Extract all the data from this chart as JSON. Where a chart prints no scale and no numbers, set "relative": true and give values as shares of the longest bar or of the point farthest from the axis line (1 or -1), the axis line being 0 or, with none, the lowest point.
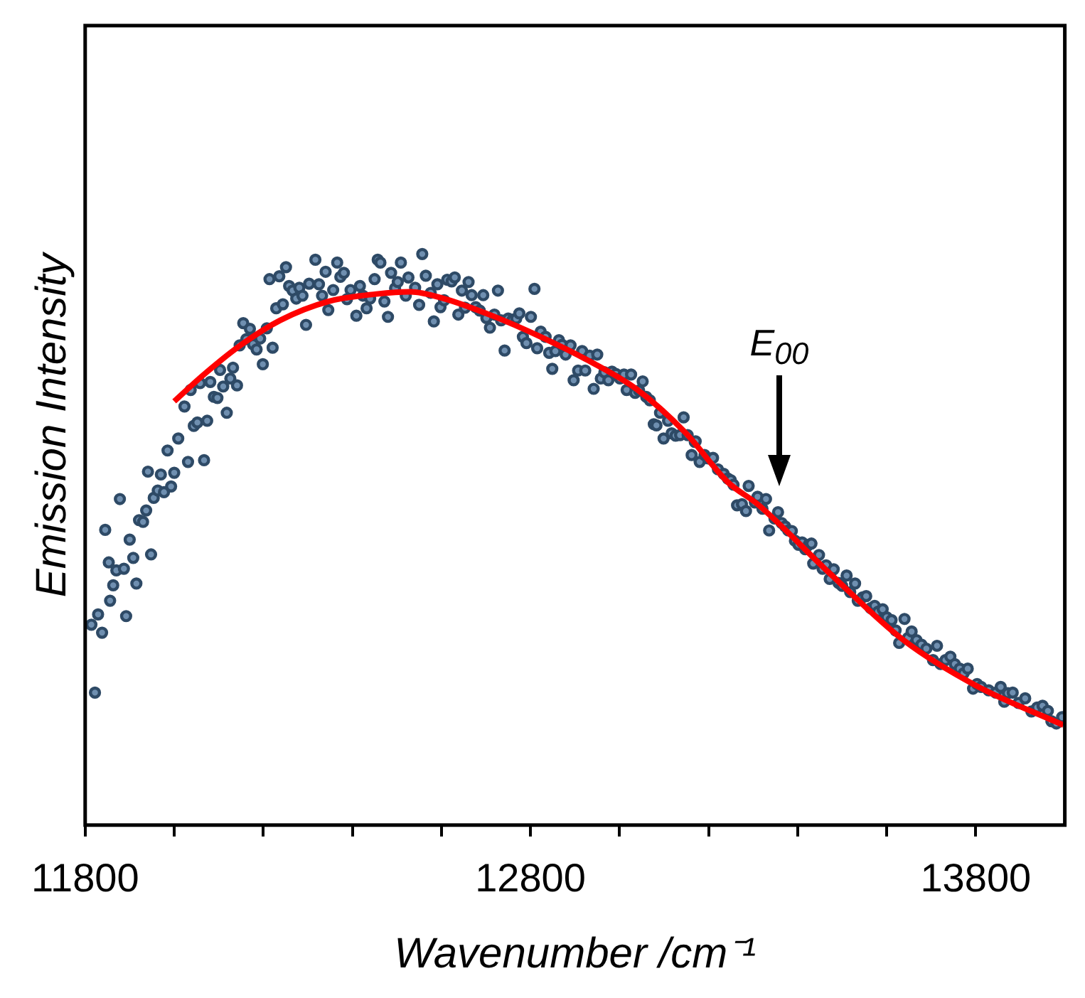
{
  "chart_data": {
    "type": "scatter",
    "xlabel": "Wavenumber /cm⁻¹",
    "ylabel": "Emission Intensity",
    "relative": true,
    "grid": false,
    "legend": false,
    "xlim": [
      11800,
      14000
    ],
    "xticks": [
      11800,
      {
        "value": 12000,
        "label": null
      },
      {
        "value": 12200,
        "label": null
      },
      {
        "value": 12400,
        "label": null
      },
      {
        "value": 12600,
        "label": null
      },
      12800,
      {
        "value": 13000,
        "label": null
      },
      {
        "value": 13200,
        "label": null
      },
      {
        "value": 13400,
        "label": null
      },
      {
        "value": 13600,
        "label": null
      },
      13800
    ],
    "annotations": [
      "E$_{00}$"
    ],
    "series": [
      {
        "type": "scatter",
        "color": "#2e4a66",
        "marker": "circle",
        "x": [
          11822,
          11814,
          11829,
          11838,
          11845,
          11856,
          11863,
          11853,
          11870,
          11887,
          11892,
          11878,
          11900,
          11908,
          11915,
          11921,
          11930,
          11937,
          11948,
          11941,
          11954,
          11963,
          11970,
          11977,
          11993,
          11985,
          12000,
          12009,
          12023,
          12031,
          12044,
          12052,
          12067,
          12074,
          12037,
          12058,
          12081,
          12089,
          12097,
          12103,
          12110,
          12118,
          12126,
          12132,
          12141,
          12147,
          12155,
          12162,
          12170,
          12177,
          12185,
          12193,
          12199,
          12208,
          12221,
          12229,
          12214,
          12236,
          12244,
          12251,
          12258,
          12266,
          12274,
          12281,
          12288,
          12296,
          12303,
          12317,
          12325,
          12332,
          12340,
          12346,
          12357,
          12366,
          12373,
          12381,
          12388,
          12396,
          12409,
          12417,
          12424,
          12432,
          12440,
          12450,
          12457,
          12463,
          12472,
          12480,
          12487,
          12496,
          12502,
          12509,
          12520,
          12526,
          12541,
          12550,
          12557,
          12565,
          12576,
          12583,
          12591,
          12598,
          12606,
          12613,
          12623,
          12630,
          12638,
          12646,
          12653,
          12661,
          12668,
          12677,
          12686,
          12694,
          12701,
          12709,
          12719,
          12727,
          12734,
          12742,
          12750,
          12760,
          12768,
          12775,
          12783,
          12791,
          12801,
          12809,
          12815,
          12823,
          12834,
          12842,
          12849,
          12856,
          12864,
          12871,
          12879,
          12890,
          12897,
          12907,
          12916,
          12923,
          12933,
          12942,
          12950,
          12958,
          12966,
          12975,
          12983,
          12992,
          13001,
          13010,
          13016,
          13026,
          13035,
          13044,
          13052,
          13060,
          13068,
          13077,
          13083,
          13091,
          13099,
          13109,
          13117,
          13126,
          13136,
          13144,
          13153,
          13162,
          13169,
          13171,
          13180,
          13191,
          13199,
          13210,
          13221,
          13234,
          13243,
          13250,
          13256,
          13264,
          13275,
          13284,
          13290,
          13304,
          13310,
          13321,
          13329,
          13336,
          13348,
          13356,
          13364,
          13372,
          13379,
          13387,
          13394,
          13402,
          13410,
          13417,
          13425,
          13431,
          13435,
          13448,
          13456,
          13464,
          13472,
          13481,
          13492,
          13500,
          13510,
          13518,
          13529,
          13535,
          13546,
          13554,
          13564,
          13573,
          13581,
          13591,
          13600,
          13611,
          13620,
          13628,
          13640,
          13648,
          13656,
          13667,
          13678,
          13689,
          13704,
          13713,
          13721,
          13732,
          13743,
          13753,
          13764,
          13773,
          13782,
          13794,
          13803,
          13812,
          13829,
          13845,
          13856,
          13864,
          13872,
          13883,
          13896,
          13911,
          13925,
          13938,
          13950,
          13962,
          13970,
          13981,
          13994
        ],
        "values": [
          0.232,
          0.351,
          0.369,
          0.337,
          0.517,
          0.393,
          0.42,
          0.46,
          0.446,
          0.449,
          0.366,
          0.571,
          0.5,
          0.468,
          0.423,
          0.534,
          0.531,
          0.551,
          0.474,
          0.619,
          0.573,
          0.586,
          0.614,
          0.583,
          0.593,
          0.656,
          0.617,
          0.677,
          0.733,
          0.636,
          0.699,
          0.705,
          0.639,
          0.708,
          0.762,
          0.774,
          0.776,
          0.75,
          0.748,
          0.797,
          0.768,
          0.722,
          0.782,
          0.801,
          0.77,
          0.84,
          0.879,
          0.851,
          0.869,
          0.842,
          0.833,
          0.852,
          0.807,
          0.87,
          0.836,
          0.905,
          0.956,
          0.961,
          0.912,
          0.977,
          0.944,
          0.936,
          0.922,
          0.941,
          0.927,
          0.876,
          0.948,
          0.99,
          0.947,
          0.927,
          0.969,
          0.902,
          0.937,
          0.985,
          0.96,
          0.967,
          0.921,
          0.937,
          0.892,
          0.944,
          0.927,
          0.905,
          0.922,
          0.956,
          0.99,
          0.985,
          0.917,
          0.89,
          0.967,
          0.94,
          0.951,
          0.985,
          0.927,
          0.959,
          0.941,
          0.911,
          1,
          0.962,
          0.932,
          0.882,
          0.947,
          0.907,
          0.919,
          0.955,
          0.952,
          0.959,
          0.894,
          0.936,
          0.906,
          0.951,
          0.928,
          0.907,
          0.901,
          0.928,
          0.888,
          0.871,
          0.894,
          0.936,
          0.884,
          0.831,
          0.887,
          0.885,
          0.887,
          0.896,
          0.855,
          0.844,
          0.89,
          0.939,
          0.835,
          0.864,
          0.855,
          0.827,
          0.799,
          0.83,
          0.849,
          0.841,
          0.824,
          0.84,
          0.779,
          0.796,
          0.83,
          0.796,
          0.822,
          0.764,
          0.824,
          0.782,
          0.793,
          0.779,
          0.794,
          0.79,
          0.782,
          0.789,
          0.762,
          0.789,
          0.757,
          0.761,
          0.777,
          0.75,
          0.744,
          0.702,
          0.7,
          0.722,
          0.677,
          0.708,
          0.686,
          0.682,
          0.683,
          0.714,
          0.683,
          0.648,
          0.671,
          0.672,
          0.636,
          0.648,
          0.642,
          0.643,
          0.623,
          0.615,
          0.607,
          0.604,
          0.596,
          0.56,
          0.562,
          0.55,
          0.594,
          0.565,
          0.575,
          0.554,
          0.571,
          0.516,
          0.537,
          0.548,
          0.529,
          0.523,
          0.516,
          0.515,
          0.498,
          0.491,
          0.495,
          0.483,
          0.491,
          0.493,
          0.458,
          0.473,
          0.449,
          0.455,
          0.431,
          0.448,
          0.424,
          0.419,
          0.437,
          0.408,
          0.423,
          0.393,
          0.399,
          0.401,
          0.38,
          0.384,
          0.374,
          0.378,
          0.364,
          0.359,
          0.341,
          0.319,
          0.361,
          0.328,
          0.339,
          0.324,
          0.316,
          0.309,
          0.289,
          0.314,
          0.282,
          0.289,
          0.295,
          0.282,
          0.274,
          0.266,
          0.274,
          0.239,
          0.247,
          0.242,
          0.236,
          0.232,
          0.242,
          0.216,
          0.231,
          0.232,
          0.214,
          0.222,
          0.199,
          0.206,
          0.209,
          0.2,
          0.182,
          0.178,
          0.189
        ]
      },
      {
        "type": "line",
        "color": "#ff0000",
        "marker": "none",
        "line_style": "solid",
        "x": [
          12000,
          12065,
          12152,
          12238,
          12346,
          12454,
          12530,
          12606,
          12714,
          12823,
          12931,
          13039,
          13147,
          13244,
          13310,
          13472,
          13636,
          13799,
          13997
        ],
        "values": [
          0.742,
          0.788,
          0.842,
          0.884,
          0.917,
          0.93,
          0.934,
          0.922,
          0.892,
          0.855,
          0.813,
          0.763,
          0.688,
          0.6,
          0.562,
          0.441,
          0.325,
          0.245,
          0.175
        ]
      }
    ]
  }
}
